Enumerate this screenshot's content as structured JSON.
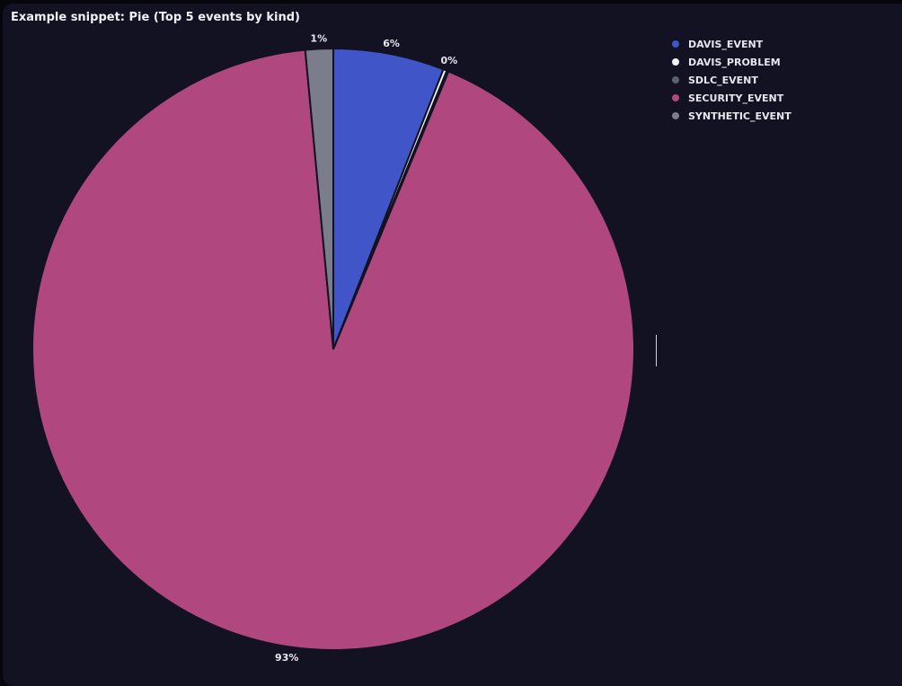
{
  "title": "Example snippet: Pie (Top 5 events by kind)",
  "chart_data": {
    "type": "pie",
    "title": "Example snippet: Pie (Top 5 events by kind)",
    "legend_position": "top-right",
    "slices": [
      {
        "name": "DAVIS_EVENT",
        "value": 6,
        "label": "6%",
        "color": "#3f55c8"
      },
      {
        "name": "DAVIS_PROBLEM",
        "value": 0.2,
        "label": "0%",
        "color": "#f2f2f5"
      },
      {
        "name": "SDLC_EVENT",
        "value": 0.1,
        "label": "",
        "color": "#5a606e"
      },
      {
        "name": "SECURITY_EVENT",
        "value": 92.9,
        "label": "93%",
        "color": "#b0487f"
      },
      {
        "name": "SYNTHETIC_EVENT",
        "value": 1.5,
        "label": "1%",
        "color": "#7b7d8c"
      }
    ]
  }
}
